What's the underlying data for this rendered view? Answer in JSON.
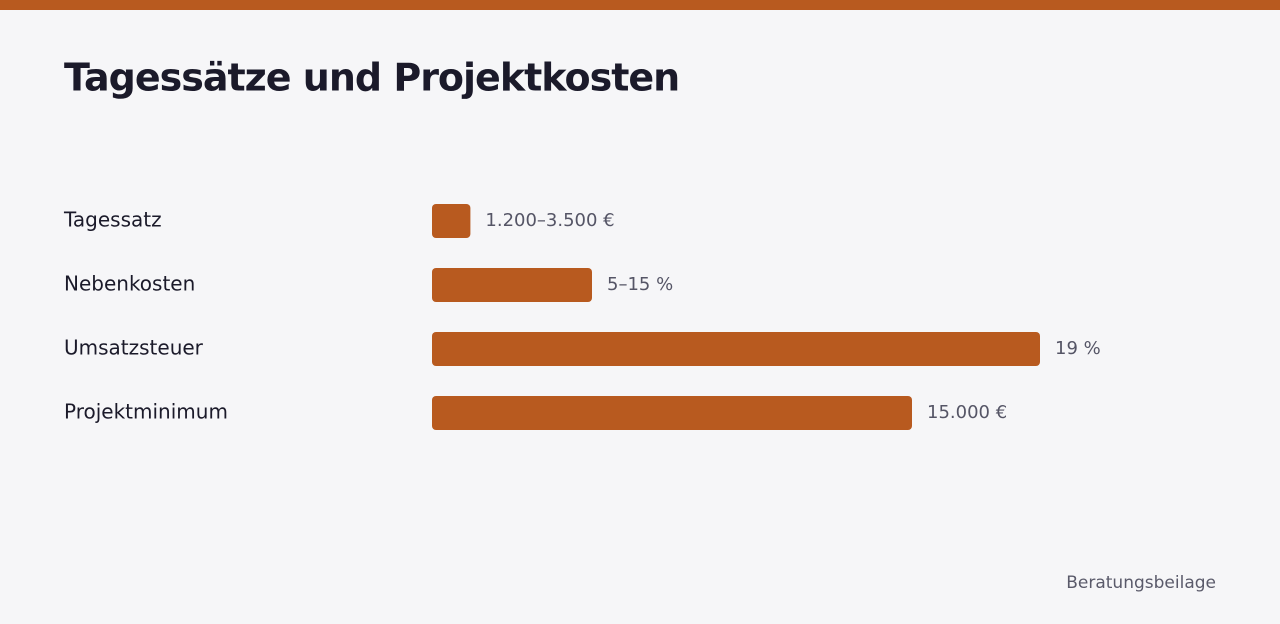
{
  "chart_data": {
    "type": "bar",
    "orientation": "horizontal",
    "title": "Tagessätze und Projektkosten",
    "categories": [
      "Tagessatz",
      "Nebenkosten",
      "Umsatzsteuer",
      "Projektminimum"
    ],
    "values": [
      1.2,
      5,
      19,
      15
    ],
    "value_labels": [
      "1.200–3.500 €",
      "5–15 %",
      "19 %",
      "15.000 €"
    ],
    "color": "#b85a1f",
    "xlim": [
      0,
      19
    ],
    "footer": "Beratungsbeilage"
  }
}
